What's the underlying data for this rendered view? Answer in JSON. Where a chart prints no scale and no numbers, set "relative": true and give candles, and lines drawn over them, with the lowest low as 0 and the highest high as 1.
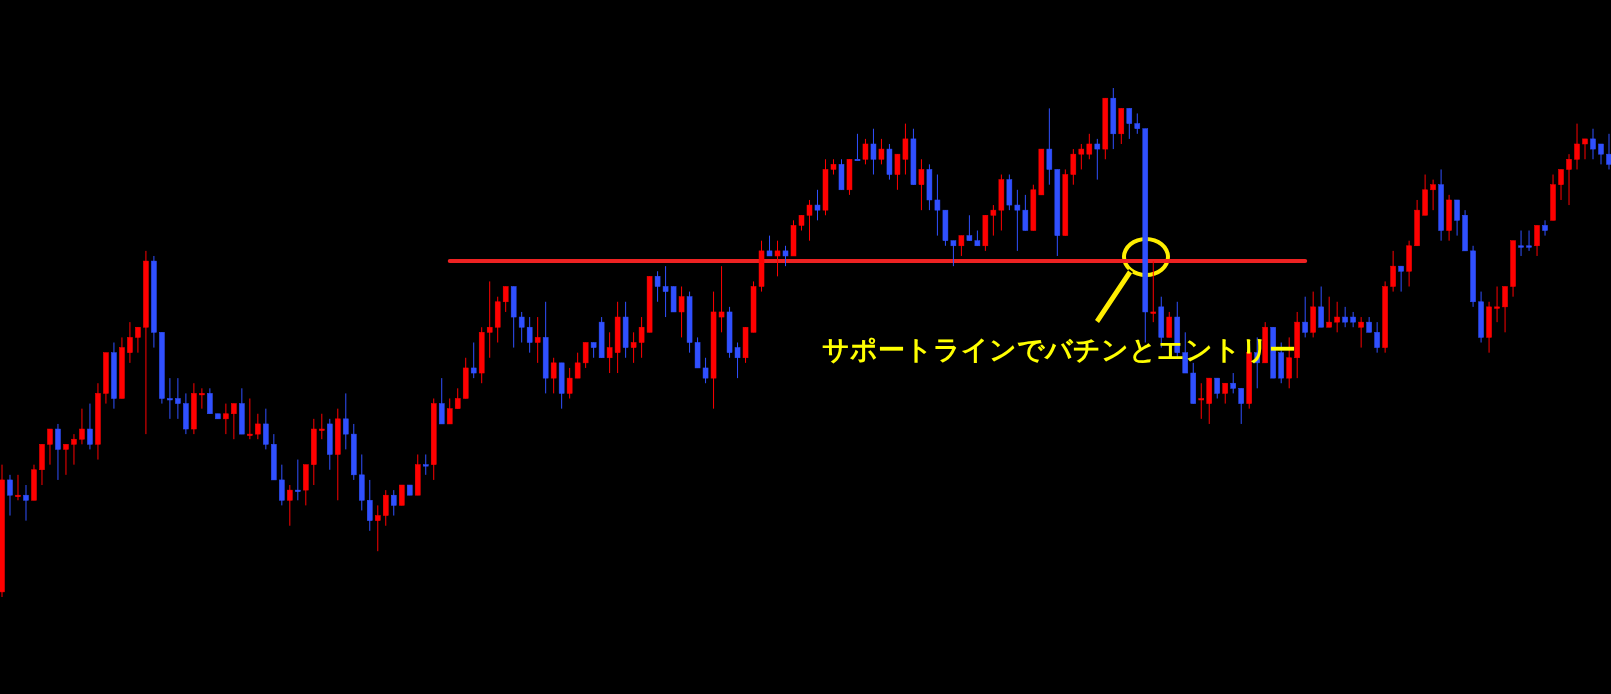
{
  "chart_data": {
    "type": "candlestick",
    "relative": true,
    "categories": [
      null,
      null,
      null,
      null,
      null,
      null,
      null,
      null,
      null,
      null,
      null,
      null,
      null,
      null,
      null,
      null,
      null,
      null,
      null,
      null,
      null,
      null,
      null,
      null,
      null,
      null,
      null,
      null,
      null,
      null,
      null,
      null,
      null,
      null,
      null,
      null,
      null,
      null,
      null,
      null,
      null,
      null,
      null,
      null,
      null,
      null,
      null,
      null,
      null,
      null,
      null,
      null,
      null,
      null,
      null,
      null,
      null,
      null,
      null,
      null,
      null,
      null,
      null,
      null,
      null,
      null,
      null,
      null,
      null,
      null,
      null,
      null,
      null,
      null,
      null,
      null,
      null,
      null,
      null,
      null,
      null,
      null,
      null,
      null,
      null,
      null,
      null,
      null,
      null,
      null,
      null,
      null,
      null,
      null,
      null,
      null,
      null,
      null,
      null,
      null,
      null,
      null,
      null,
      null,
      null,
      null,
      null,
      null,
      null,
      null,
      null,
      null,
      null,
      null,
      null,
      null,
      null,
      null,
      null,
      null,
      null,
      null,
      null,
      null,
      null,
      null,
      null,
      null,
      null,
      null,
      null,
      null,
      null,
      null,
      null,
      null,
      null,
      null,
      null,
      null,
      null,
      null,
      null,
      null,
      null,
      null,
      null,
      null,
      null,
      null,
      null,
      null,
      null,
      null,
      null,
      null,
      null,
      null,
      null,
      null,
      null,
      null,
      null,
      null,
      null,
      null,
      null,
      null,
      null,
      null,
      null,
      null,
      null,
      null,
      null,
      null,
      null,
      null,
      null,
      null,
      null,
      null,
      null,
      null,
      null,
      null,
      null,
      null,
      null,
      null,
      null,
      null,
      null,
      null,
      null,
      null,
      null,
      null,
      null,
      null,
      null,
      null
    ],
    "ohlc": [
      [
        0.01,
        0.26,
        0,
        0.23
      ],
      [
        0.23,
        0.24,
        0.16,
        0.2
      ],
      [
        0.2,
        0.24,
        0.19,
        0.2
      ],
      [
        0.2,
        0.22,
        0.15,
        0.19
      ],
      [
        0.19,
        0.26,
        0.19,
        0.25
      ],
      [
        0.25,
        0.3,
        0.22,
        0.3
      ],
      [
        0.3,
        0.33,
        0.26,
        0.33
      ],
      [
        0.33,
        0.34,
        0.23,
        0.29
      ],
      [
        0.29,
        0.3,
        0.24,
        0.3
      ],
      [
        0.3,
        0.32,
        0.26,
        0.31
      ],
      [
        0.31,
        0.37,
        0.3,
        0.33
      ],
      [
        0.33,
        0.38,
        0.29,
        0.3
      ],
      [
        0.3,
        0.42,
        0.27,
        0.4
      ],
      [
        0.4,
        0.48,
        0.38,
        0.48
      ],
      [
        0.48,
        0.5,
        0.37,
        0.39
      ],
      [
        0.39,
        0.51,
        0.39,
        0.49
      ],
      [
        0.48,
        0.54,
        0.46,
        0.51
      ],
      [
        0.51,
        0.53,
        0.48,
        0.53
      ],
      [
        0.53,
        0.68,
        0.32,
        0.66
      ],
      [
        0.66,
        0.67,
        0.49,
        0.52
      ],
      [
        0.52,
        0.52,
        0.38,
        0.39
      ],
      [
        0.39,
        0.43,
        0.35,
        0.39
      ],
      [
        0.39,
        0.43,
        0.35,
        0.38
      ],
      [
        0.38,
        0.4,
        0.32,
        0.33
      ],
      [
        0.33,
        0.42,
        0.32,
        0.4
      ],
      [
        0.4,
        0.41,
        0.37,
        0.4
      ],
      [
        0.4,
        0.41,
        0.36,
        0.36
      ],
      [
        0.36,
        0.36,
        0.35,
        0.35
      ],
      [
        0.35,
        0.38,
        0.32,
        0.36
      ],
      [
        0.36,
        0.38,
        0.31,
        0.38
      ],
      [
        0.38,
        0.41,
        0.32,
        0.32
      ],
      [
        0.32,
        0.39,
        0.31,
        0.32
      ],
      [
        0.32,
        0.36,
        0.31,
        0.34
      ],
      [
        0.34,
        0.37,
        0.29,
        0.3
      ],
      [
        0.3,
        0.32,
        0.23,
        0.23
      ],
      [
        0.23,
        0.26,
        0.18,
        0.19
      ],
      [
        0.19,
        0.22,
        0.14,
        0.21
      ],
      [
        0.21,
        0.27,
        0.19,
        0.21
      ],
      [
        0.21,
        0.26,
        0.18,
        0.26
      ],
      [
        0.26,
        0.35,
        0.22,
        0.33
      ],
      [
        0.33,
        0.36,
        0.31,
        0.33
      ],
      [
        0.34,
        0.35,
        0.25,
        0.28
      ],
      [
        0.28,
        0.37,
        0.19,
        0.35
      ],
      [
        0.35,
        0.4,
        0.29,
        0.32
      ],
      [
        0.32,
        0.34,
        0.23,
        0.24
      ],
      [
        0.24,
        0.28,
        0.17,
        0.19
      ],
      [
        0.19,
        0.23,
        0.13,
        0.15
      ],
      [
        0.15,
        0.18,
        0.09,
        0.16
      ],
      [
        0.16,
        0.21,
        0.14,
        0.2
      ],
      [
        0.2,
        0.21,
        0.16,
        0.18
      ],
      [
        0.18,
        0.22,
        0.18,
        0.22
      ],
      [
        0.22,
        0.22,
        0.2,
        0.2
      ],
      [
        0.2,
        0.28,
        0.2,
        0.26
      ],
      [
        0.26,
        0.28,
        0.24,
        0.26
      ],
      [
        0.26,
        0.39,
        0.23,
        0.38
      ],
      [
        0.38,
        0.43,
        0.34,
        0.34
      ],
      [
        0.34,
        0.39,
        0.34,
        0.37
      ],
      [
        0.37,
        0.41,
        0.37,
        0.39
      ],
      [
        0.39,
        0.47,
        0.39,
        0.45
      ],
      [
        0.45,
        0.5,
        0.43,
        0.44
      ],
      [
        0.44,
        0.53,
        0.42,
        0.52
      ],
      [
        0.52,
        0.62,
        0.47,
        0.53
      ],
      [
        0.53,
        0.59,
        0.5,
        0.58
      ],
      [
        0.58,
        0.61,
        0.56,
        0.61
      ],
      [
        0.61,
        0.61,
        0.49,
        0.55
      ],
      [
        0.55,
        0.56,
        0.5,
        0.53
      ],
      [
        0.53,
        0.55,
        0.48,
        0.5
      ],
      [
        0.5,
        0.55,
        0.46,
        0.51
      ],
      [
        0.51,
        0.58,
        0.4,
        0.43
      ],
      [
        0.43,
        0.47,
        0.4,
        0.46
      ],
      [
        0.46,
        0.46,
        0.37,
        0.4
      ],
      [
        0.4,
        0.45,
        0.39,
        0.43
      ],
      [
        0.43,
        0.48,
        0.43,
        0.46
      ],
      [
        0.46,
        0.5,
        0.45,
        0.5
      ],
      [
        0.5,
        0.5,
        0.47,
        0.49
      ],
      [
        0.54,
        0.55,
        0.47,
        0.47
      ],
      [
        0.47,
        0.52,
        0.44,
        0.49
      ],
      [
        0.48,
        0.58,
        0.44,
        0.55
      ],
      [
        0.55,
        0.58,
        0.47,
        0.49
      ],
      [
        0.49,
        0.52,
        0.46,
        0.5
      ],
      [
        0.5,
        0.55,
        0.47,
        0.53
      ],
      [
        0.52,
        0.63,
        0.52,
        0.63
      ],
      [
        0.63,
        0.64,
        0.58,
        0.61
      ],
      [
        0.61,
        0.65,
        0.55,
        0.6
      ],
      [
        0.61,
        0.61,
        0.56,
        0.56
      ],
      [
        0.56,
        0.61,
        0.51,
        0.59
      ],
      [
        0.59,
        0.6,
        0.48,
        0.5
      ],
      [
        0.5,
        0.51,
        0.45,
        0.45
      ],
      [
        0.45,
        0.47,
        0.42,
        0.43
      ],
      [
        0.43,
        0.6,
        0.37,
        0.56
      ],
      [
        0.55,
        0.65,
        0.52,
        0.56
      ],
      [
        0.56,
        0.57,
        0.47,
        0.48
      ],
      [
        0.49,
        0.5,
        0.43,
        0.47
      ],
      [
        0.47,
        0.53,
        0.46,
        0.53
      ],
      [
        0.52,
        0.62,
        0.52,
        0.61
      ],
      [
        0.61,
        0.7,
        0.6,
        0.68
      ],
      [
        0.68,
        0.71,
        0.67,
        0.67
      ],
      [
        0.67,
        0.7,
        0.63,
        0.68
      ],
      [
        0.68,
        0.69,
        0.65,
        0.67
      ],
      [
        0.67,
        0.74,
        0.67,
        0.73
      ],
      [
        0.73,
        0.75,
        0.72,
        0.75
      ],
      [
        0.75,
        0.78,
        0.7,
        0.77
      ],
      [
        0.77,
        0.8,
        0.74,
        0.76
      ],
      [
        0.76,
        0.86,
        0.75,
        0.84
      ],
      [
        0.84,
        0.86,
        0.83,
        0.85
      ],
      [
        0.85,
        0.86,
        0.8,
        0.8
      ],
      [
        0.8,
        0.86,
        0.79,
        0.86
      ],
      [
        0.86,
        0.91,
        0.86,
        0.86
      ],
      [
        0.86,
        0.9,
        0.85,
        0.89
      ],
      [
        0.89,
        0.92,
        0.83,
        0.86
      ],
      [
        0.86,
        0.9,
        0.85,
        0.88
      ],
      [
        0.88,
        0.89,
        0.82,
        0.83
      ],
      [
        0.83,
        0.87,
        0.8,
        0.87
      ],
      [
        0.86,
        0.93,
        0.83,
        0.9
      ],
      [
        0.9,
        0.92,
        0.81,
        0.81
      ],
      [
        0.81,
        0.86,
        0.76,
        0.84
      ],
      [
        0.84,
        0.85,
        0.76,
        0.78
      ],
      [
        0.78,
        0.83,
        0.71,
        0.76
      ],
      [
        0.76,
        0.76,
        0.69,
        0.7
      ],
      [
        0.7,
        0.7,
        0.65,
        0.69
      ],
      [
        0.69,
        0.71,
        0.67,
        0.71
      ],
      [
        0.71,
        0.75,
        0.7,
        0.7
      ],
      [
        0.7,
        0.72,
        0.69,
        0.69
      ],
      [
        0.69,
        0.75,
        0.68,
        0.75
      ],
      [
        0.75,
        0.77,
        0.71,
        0.76
      ],
      [
        0.76,
        0.83,
        0.72,
        0.82
      ],
      [
        0.82,
        0.83,
        0.76,
        0.77
      ],
      [
        0.77,
        0.8,
        0.68,
        0.76
      ],
      [
        0.76,
        0.79,
        0.72,
        0.72
      ],
      [
        0.72,
        0.81,
        0.72,
        0.8
      ],
      [
        0.79,
        0.88,
        0.79,
        0.88
      ],
      [
        0.88,
        0.96,
        0.81,
        0.84
      ],
      [
        0.84,
        0.84,
        0.67,
        0.71
      ],
      [
        0.71,
        0.84,
        0.71,
        0.83
      ],
      [
        0.83,
        0.88,
        0.81,
        0.87
      ],
      [
        0.87,
        0.89,
        0.84,
        0.88
      ],
      [
        0.87,
        0.91,
        0.86,
        0.89
      ],
      [
        0.89,
        0.9,
        0.82,
        0.88
      ],
      [
        0.88,
        0.98,
        0.86,
        0.98
      ],
      [
        0.98,
        1,
        0.88,
        0.91
      ],
      [
        0.91,
        0.96,
        0.89,
        0.96
      ],
      [
        0.96,
        0.96,
        0.9,
        0.93
      ],
      [
        0.93,
        0.95,
        0.91,
        0.92
      ],
      [
        0.92,
        0.92,
        0.5,
        0.56
      ],
      [
        0.56,
        0.66,
        0.54,
        0.56
      ],
      [
        0.57,
        0.59,
        0.49,
        0.51
      ],
      [
        0.51,
        0.56,
        0.51,
        0.55
      ],
      [
        0.55,
        0.58,
        0.47,
        0.48
      ],
      [
        0.48,
        0.52,
        0.44,
        0.44
      ],
      [
        0.44,
        0.46,
        0.38,
        0.38
      ],
      [
        0.39,
        0.42,
        0.35,
        0.39
      ],
      [
        0.38,
        0.43,
        0.34,
        0.43
      ],
      [
        0.43,
        0.43,
        0.39,
        0.4
      ],
      [
        0.4,
        0.42,
        0.38,
        0.42
      ],
      [
        0.42,
        0.44,
        0.4,
        0.41
      ],
      [
        0.41,
        0.41,
        0.34,
        0.38
      ],
      [
        0.38,
        0.48,
        0.37,
        0.48
      ],
      [
        0.48,
        0.51,
        0.41,
        0.46
      ],
      [
        0.46,
        0.54,
        0.46,
        0.53
      ],
      [
        0.53,
        0.53,
        0.43,
        0.43
      ],
      [
        0.48,
        0.5,
        0.42,
        0.43
      ],
      [
        0.43,
        0.51,
        0.41,
        0.47
      ],
      [
        0.47,
        0.56,
        0.43,
        0.54
      ],
      [
        0.54,
        0.59,
        0.51,
        0.52
      ],
      [
        0.52,
        0.6,
        0.51,
        0.57
      ],
      [
        0.57,
        0.61,
        0.53,
        0.53
      ],
      [
        0.53,
        0.59,
        0.53,
        0.54
      ],
      [
        0.54,
        0.58,
        0.52,
        0.55
      ],
      [
        0.55,
        0.57,
        0.53,
        0.54
      ],
      [
        0.55,
        0.56,
        0.53,
        0.54
      ],
      [
        0.53,
        0.55,
        0.49,
        0.54
      ],
      [
        0.54,
        0.55,
        0.52,
        0.52
      ],
      [
        0.52,
        0.54,
        0.48,
        0.49
      ],
      [
        0.49,
        0.62,
        0.48,
        0.61
      ],
      [
        0.61,
        0.68,
        0.6,
        0.65
      ],
      [
        0.65,
        0.65,
        0.6,
        0.64
      ],
      [
        0.64,
        0.7,
        0.61,
        0.69
      ],
      [
        0.69,
        0.78,
        0.69,
        0.76
      ],
      [
        0.75,
        0.83,
        0.75,
        0.8
      ],
      [
        0.8,
        0.82,
        0.76,
        0.81
      ],
      [
        0.81,
        0.84,
        0.7,
        0.72
      ],
      [
        0.72,
        0.79,
        0.7,
        0.78
      ],
      [
        0.78,
        0.78,
        0.71,
        0.74
      ],
      [
        0.75,
        0.76,
        0.68,
        0.68
      ],
      [
        0.68,
        0.69,
        0.57,
        0.58
      ],
      [
        0.58,
        0.6,
        0.5,
        0.51
      ],
      [
        0.51,
        0.58,
        0.48,
        0.57
      ],
      [
        0.57,
        0.61,
        0.54,
        0.57
      ],
      [
        0.57,
        0.61,
        0.52,
        0.61
      ],
      [
        0.61,
        0.7,
        0.59,
        0.7
      ],
      [
        0.69,
        0.72,
        0.67,
        0.69
      ],
      [
        0.69,
        0.72,
        0.68,
        0.69
      ],
      [
        0.69,
        0.73,
        0.67,
        0.73
      ],
      [
        0.73,
        0.74,
        0.71,
        0.72
      ],
      [
        0.74,
        0.83,
        0.74,
        0.81
      ],
      [
        0.81,
        0.84,
        0.78,
        0.84
      ],
      [
        0.84,
        0.87,
        0.77,
        0.86
      ],
      [
        0.86,
        0.93,
        0.84,
        0.89
      ],
      [
        0.89,
        0.9,
        0.86,
        0.9
      ],
      [
        0.9,
        0.92,
        0.86,
        0.88
      ],
      [
        0.89,
        0.89,
        0.85,
        0.87
      ],
      [
        0.87,
        0.91,
        0.84,
        0.85
      ]
    ],
    "colors": [
      "#ff0000",
      "#3050ff",
      "#ff0000",
      "#3050ff",
      "#ff0000",
      "#ff0000",
      "#ff0000",
      "#3050ff",
      "#ff0000",
      "#ff0000",
      "#ff0000",
      "#3050ff",
      "#ff0000",
      "#ff0000",
      "#3050ff",
      "#ff0000",
      "#ff0000",
      "#ff0000",
      "#ff0000",
      "#3050ff",
      "#3050ff",
      "#3050ff",
      "#3050ff",
      "#3050ff",
      "#ff0000",
      "#ff0000",
      "#3050ff",
      "#3050ff",
      "#ff0000",
      "#ff0000",
      "#3050ff",
      "#ff0000",
      "#ff0000",
      "#3050ff",
      "#3050ff",
      "#3050ff",
      "#ff0000",
      "#3050ff",
      "#ff0000",
      "#ff0000",
      "#ff0000",
      "#3050ff",
      "#ff0000",
      "#3050ff",
      "#3050ff",
      "#3050ff",
      "#3050ff",
      "#ff0000",
      "#ff0000",
      "#3050ff",
      "#ff0000",
      "#3050ff",
      "#ff0000",
      "#3050ff",
      "#ff0000",
      "#3050ff",
      "#ff0000",
      "#ff0000",
      "#ff0000",
      "#3050ff",
      "#ff0000",
      "#ff0000",
      "#ff0000",
      "#ff0000",
      "#3050ff",
      "#3050ff",
      "#3050ff",
      "#ff0000",
      "#3050ff",
      "#ff0000",
      "#3050ff",
      "#ff0000",
      "#ff0000",
      "#ff0000",
      "#3050ff",
      "#3050ff",
      "#ff0000",
      "#ff0000",
      "#3050ff",
      "#ff0000",
      "#ff0000",
      "#ff0000",
      "#3050ff",
      "#3050ff",
      "#3050ff",
      "#ff0000",
      "#3050ff",
      "#3050ff",
      "#3050ff",
      "#ff0000",
      "#ff0000",
      "#3050ff",
      "#3050ff",
      "#ff0000",
      "#ff0000",
      "#ff0000",
      "#3050ff",
      "#ff0000",
      "#3050ff",
      "#ff0000",
      "#ff0000",
      "#ff0000",
      "#3050ff",
      "#ff0000",
      "#ff0000",
      "#3050ff",
      "#ff0000",
      "#3050ff",
      "#ff0000",
      "#3050ff",
      "#ff0000",
      "#3050ff",
      "#ff0000",
      "#ff0000",
      "#3050ff",
      "#ff0000",
      "#3050ff",
      "#3050ff",
      "#3050ff",
      "#3050ff",
      "#ff0000",
      "#3050ff",
      "#3050ff",
      "#ff0000",
      "#ff0000",
      "#ff0000",
      "#3050ff",
      "#3050ff",
      "#3050ff",
      "#ff0000",
      "#ff0000",
      "#3050ff",
      "#3050ff",
      "#ff0000",
      "#ff0000",
      "#ff0000",
      "#ff0000",
      "#3050ff",
      "#ff0000",
      "#3050ff",
      "#ff0000",
      "#3050ff",
      "#3050ff",
      "#3050ff",
      "#ff0000",
      "#3050ff",
      "#ff0000",
      "#3050ff",
      "#3050ff",
      "#3050ff",
      "#ff0000",
      "#ff0000",
      "#3050ff",
      "#ff0000",
      "#3050ff",
      "#3050ff",
      "#ff0000",
      "#3050ff",
      "#ff0000",
      "#3050ff",
      "#3050ff",
      "#ff0000",
      "#ff0000",
      "#3050ff",
      "#ff0000",
      "#3050ff",
      "#ff0000",
      "#ff0000",
      "#3050ff",
      "#3050ff",
      "#ff0000",
      "#3050ff",
      "#3050ff",
      "#ff0000",
      "#ff0000",
      "#3050ff",
      "#ff0000",
      "#ff0000",
      "#ff0000",
      "#ff0000",
      "#3050ff",
      "#ff0000",
      "#3050ff",
      "#3050ff",
      "#3050ff",
      "#3050ff",
      "#ff0000",
      "#ff0000",
      "#ff0000",
      "#ff0000",
      "#3050ff",
      "#3050ff",
      "#ff0000",
      "#3050ff",
      "#ff0000",
      "#ff0000",
      "#ff0000",
      "#ff0000",
      "#ff0000",
      "#3050ff",
      "#3050ff",
      "#3050ff"
    ],
    "series": [
      {
        "type": "line",
        "color": "#ee2222",
        "values": [
          null,
          null,
          null,
          null,
          null,
          null,
          null,
          null,
          null,
          null,
          null,
          null,
          null,
          null,
          null,
          null,
          null,
          null,
          null,
          null,
          null,
          null,
          null,
          null,
          null,
          null,
          null,
          null,
          null,
          null,
          null,
          null,
          null,
          null,
          null,
          null,
          null,
          null,
          null,
          null,
          null,
          null,
          null,
          null,
          null,
          null,
          null,
          null,
          null,
          null,
          null,
          null,
          null,
          null,
          null,
          null,
          0.66,
          0.66,
          0.66,
          0.66,
          0.66,
          0.66,
          0.66,
          0.66,
          0.66,
          0.66,
          0.66,
          0.66,
          0.66,
          0.66,
          0.66,
          0.66,
          0.66,
          0.66,
          0.66,
          0.66,
          0.66,
          0.66,
          0.66,
          0.66,
          0.66,
          0.66,
          0.66,
          0.66,
          0.66,
          0.66,
          0.66,
          0.66,
          0.66,
          0.66,
          0.66,
          0.66,
          0.66,
          0.66,
          0.66,
          0.66,
          0.66,
          0.66,
          0.66,
          0.66,
          0.66,
          0.66,
          0.66,
          0.66,
          0.66,
          0.66,
          0.66,
          0.66,
          0.66,
          0.66,
          0.66,
          0.66,
          0.66,
          0.66,
          0.66,
          0.66,
          0.66,
          0.66,
          0.66,
          0.66,
          0.66,
          0.66,
          0.66,
          0.66,
          0.66,
          0.66,
          0.66,
          0.66,
          0.66,
          0.66,
          0.66,
          0.66,
          0.66,
          0.66,
          0.66,
          0.66,
          0.66,
          0.66,
          0.66,
          0.66,
          0.66,
          0.66,
          0.66,
          0.66,
          0.66,
          0.66,
          0.66,
          0.66,
          0.66,
          0.66,
          0.66,
          0.66,
          0.66,
          0.66,
          0.66,
          0.66,
          0.66,
          0.66,
          0.66,
          0.66,
          0.66,
          0.66,
          0.66,
          0.66,
          null,
          null,
          null,
          null,
          null,
          null,
          null,
          null,
          null,
          null,
          null,
          null,
          null,
          null,
          null,
          null,
          null,
          null,
          null,
          null,
          null,
          null,
          null,
          null,
          null,
          null,
          null,
          null,
          null,
          null,
          null,
          null,
          null,
          null,
          null,
          null,
          null,
          null
        ]
      }
    ],
    "annotations": [
      "サポートラインでバチンとエントリー"
    ]
  }
}
